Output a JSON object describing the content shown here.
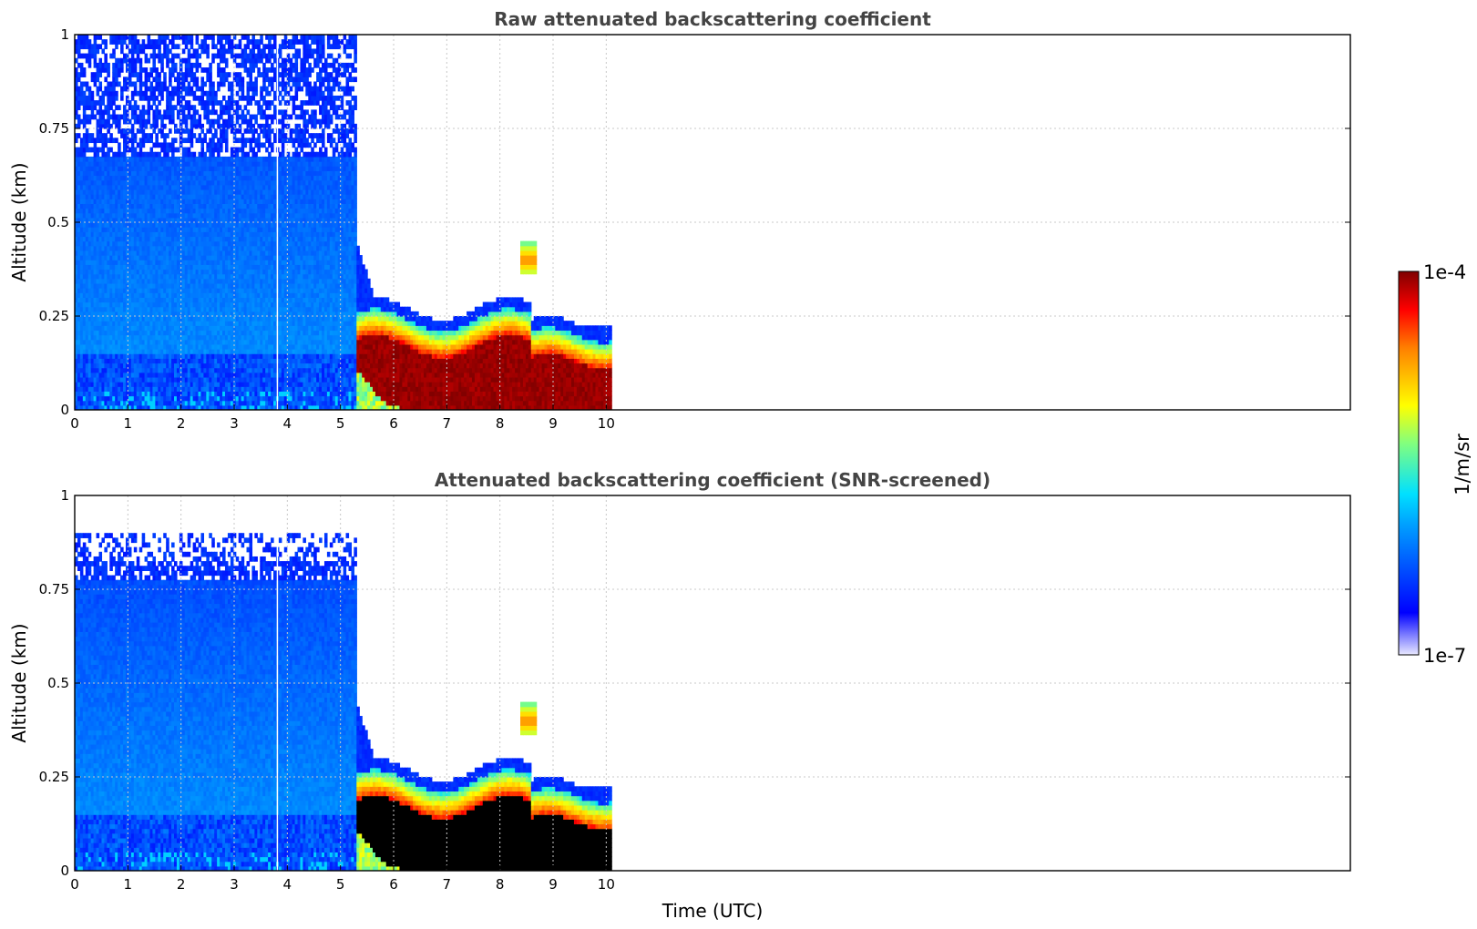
{
  "chart_data": [
    {
      "type": "heatmap",
      "title": "Raw attenuated backscattering coefficient",
      "xlabel": "",
      "ylabel": "Altitude (km)",
      "xlim": [
        0,
        24
      ],
      "ylim": [
        0,
        1
      ],
      "x_ticks": [
        "0",
        "1",
        "2",
        "3",
        "4",
        "5",
        "6",
        "7",
        "8",
        "9",
        "10"
      ],
      "y_ticks": [
        "0",
        "0.25",
        "0.5",
        "0.75",
        "1"
      ],
      "grid": true,
      "data_time_range": [
        0,
        10.1
      ],
      "regions": [
        {
          "name": "noisy clear air",
          "x": [
            0,
            5.3
          ],
          "y": [
            0.65,
            1.0
          ],
          "level": 0.25
        },
        {
          "name": "boundary layer aerosol",
          "x": [
            0,
            5.3
          ],
          "y": [
            0,
            0.65
          ],
          "level": 0.35
        },
        {
          "name": "fog/low cloud top",
          "x": [
            5.3,
            10.1
          ],
          "y": [
            0.2,
            0.27
          ],
          "level": 0.6
        },
        {
          "name": "fog/low cloud core",
          "x": [
            5.5,
            10.1
          ],
          "y": [
            0,
            0.2
          ],
          "level": 1.0
        },
        {
          "name": "elevated cloud patch",
          "x": [
            8.4,
            8.7
          ],
          "y": [
            0.36,
            0.44
          ],
          "level": 0.8
        }
      ]
    },
    {
      "type": "heatmap",
      "title": "Attenuated backscattering coefficient (SNR-screened)",
      "xlabel": "Time (UTC)",
      "ylabel": "Altitude (km)",
      "xlim": [
        0,
        24
      ],
      "ylim": [
        0,
        1
      ],
      "x_ticks": [
        "0",
        "1",
        "2",
        "3",
        "4",
        "5",
        "6",
        "7",
        "8",
        "9",
        "10"
      ],
      "y_ticks": [
        "0",
        "0.25",
        "0.5",
        "0.75",
        "1"
      ],
      "grid": true,
      "data_time_range": [
        0,
        10.1
      ],
      "regions": [
        {
          "name": "screened clear air",
          "x": [
            0,
            5.2
          ],
          "y": [
            0.78,
            0.9
          ],
          "level": 0.25
        },
        {
          "name": "boundary layer aerosol",
          "x": [
            0,
            5.3
          ],
          "y": [
            0,
            0.78
          ],
          "level": 0.35
        },
        {
          "name": "fog/low cloud top",
          "x": [
            5.3,
            10.1
          ],
          "y": [
            0.17,
            0.27
          ],
          "level": 0.6
        },
        {
          "name": "saturated (black)",
          "x": [
            5.4,
            10.1
          ],
          "y": [
            0,
            0.2
          ],
          "level": "saturated"
        },
        {
          "name": "elevated cloud patch",
          "x": [
            8.4,
            8.7
          ],
          "y": [
            0.36,
            0.44
          ],
          "level": 0.8
        }
      ]
    }
  ],
  "colorbar": {
    "label": "1/m/sr",
    "max_label": "1e-4",
    "min_label": "1e-7",
    "colormap": "jet",
    "range": [
      1e-07,
      0.0001
    ]
  },
  "colors": {
    "saturated": "#000000",
    "grid": "#c8c8c8",
    "title": "#444444"
  }
}
